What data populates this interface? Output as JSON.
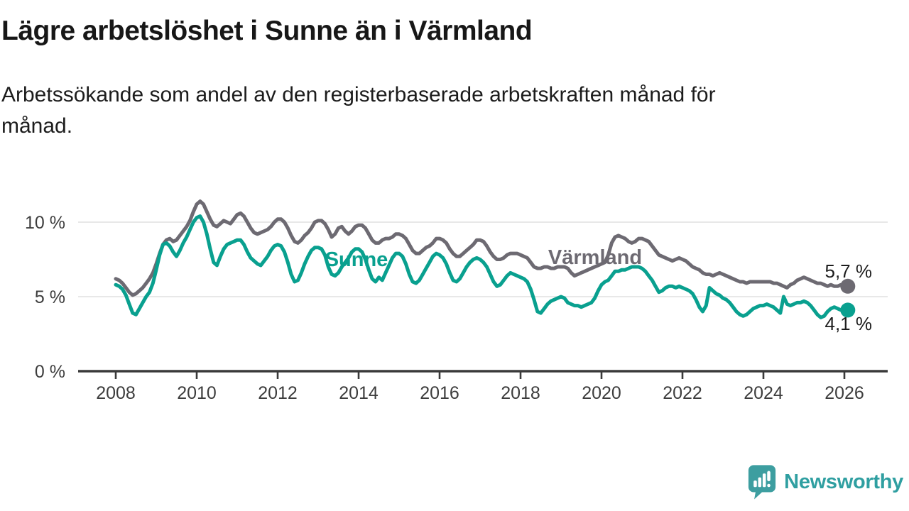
{
  "title": "Lägre arbetslöshet i Sunne än i Värmland",
  "subtitle": "Arbetssökande som andel av den registerbaserade arbetskraften månad för\nmånad.",
  "branding": {
    "logo_text": "Newsworthy",
    "logo_color": "#3d9ea0"
  },
  "chart_data": {
    "type": "line",
    "title": "Lägre arbetslöshet i Sunne än i Värmland",
    "frequency": "monthly",
    "x_range": {
      "start": "2008-01",
      "end": "2026-02"
    },
    "ylim": [
      0,
      12
    ],
    "grid": "horizontal",
    "x_axis": {
      "ticks": [
        {
          "label": "2008",
          "year": 2008
        },
        {
          "label": "2010",
          "year": 2010
        },
        {
          "label": "2012",
          "year": 2012
        },
        {
          "label": "2014",
          "year": 2014
        },
        {
          "label": "2016",
          "year": 2016
        },
        {
          "label": "2018",
          "year": 2018
        },
        {
          "label": "2020",
          "year": 2020
        },
        {
          "label": "2022",
          "year": 2022
        },
        {
          "label": "2024",
          "year": 2024
        },
        {
          "label": "2026",
          "year": 2026
        }
      ]
    },
    "y_axis": {
      "ticks": [
        {
          "label": "0 %",
          "value": 0
        },
        {
          "label": "5 %",
          "value": 5
        },
        {
          "label": "10 %",
          "value": 10
        }
      ]
    },
    "series": [
      {
        "id": "varmland",
        "name": "Värmland",
        "color": "#6d6a72",
        "end_label": "5,7 %",
        "values": [
          6.2,
          6.1,
          5.9,
          5.6,
          5.3,
          5.1,
          5.2,
          5.4,
          5.6,
          5.9,
          6.2,
          6.6,
          7.2,
          7.9,
          8.5,
          8.8,
          8.9,
          8.7,
          8.8,
          9.1,
          9.4,
          9.7,
          10.1,
          10.7,
          11.2,
          11.4,
          11.2,
          10.7,
          10.2,
          9.8,
          9.7,
          9.9,
          10.1,
          10.0,
          9.9,
          10.2,
          10.5,
          10.6,
          10.4,
          10.0,
          9.6,
          9.3,
          9.2,
          9.3,
          9.4,
          9.5,
          9.7,
          10.0,
          10.2,
          10.2,
          10.0,
          9.6,
          9.1,
          8.7,
          8.6,
          8.8,
          9.1,
          9.3,
          9.6,
          10.0,
          10.1,
          10.1,
          9.9,
          9.5,
          9.0,
          9.2,
          9.6,
          9.7,
          9.4,
          9.2,
          9.4,
          9.7,
          9.8,
          9.8,
          9.6,
          9.2,
          8.8,
          8.6,
          8.6,
          8.8,
          8.9,
          8.9,
          9.0,
          9.2,
          9.2,
          9.1,
          8.9,
          8.5,
          8.1,
          7.9,
          7.9,
          8.1,
          8.3,
          8.4,
          8.6,
          8.9,
          8.9,
          8.8,
          8.6,
          8.2,
          7.9,
          7.7,
          7.7,
          7.9,
          8.1,
          8.3,
          8.5,
          8.8,
          8.8,
          8.7,
          8.4,
          8.0,
          7.7,
          7.5,
          7.5,
          7.6,
          7.8,
          7.9,
          7.9,
          7.9,
          7.8,
          7.7,
          7.6,
          7.3,
          7.0,
          6.9,
          6.9,
          7.0,
          7.0,
          6.9,
          6.9,
          7.0,
          7.0,
          7.0,
          6.9,
          6.6,
          6.4,
          6.5,
          6.6,
          6.7,
          6.8,
          6.9,
          7.0,
          7.1,
          7.2,
          7.3,
          7.8,
          8.6,
          9.0,
          9.1,
          9.0,
          8.9,
          8.7,
          8.6,
          8.7,
          8.9,
          8.9,
          8.8,
          8.7,
          8.4,
          8.1,
          7.8,
          7.7,
          7.6,
          7.5,
          7.4,
          7.5,
          7.6,
          7.5,
          7.4,
          7.2,
          7.0,
          6.9,
          6.8,
          6.6,
          6.5,
          6.5,
          6.4,
          6.5,
          6.6,
          6.5,
          6.4,
          6.3,
          6.2,
          6.1,
          6.0,
          6.0,
          5.9,
          6.0,
          6.0,
          6.0,
          6.0,
          6.0,
          6.0,
          6.0,
          5.9,
          5.9,
          5.8,
          5.7,
          5.6,
          5.8,
          5.9,
          6.1,
          6.2,
          6.3,
          6.2,
          6.1,
          6.0,
          5.9,
          5.9,
          5.8,
          5.7,
          5.8,
          5.7,
          5.7,
          5.8,
          5.7,
          5.7
        ]
      },
      {
        "id": "sunne",
        "name": "Sunne",
        "color": "#09a08f",
        "end_label": "4,1 %",
        "values": [
          5.8,
          5.7,
          5.5,
          5.1,
          4.5,
          3.9,
          3.8,
          4.2,
          4.6,
          5.0,
          5.3,
          5.9,
          6.8,
          7.8,
          8.5,
          8.6,
          8.4,
          8.0,
          7.7,
          8.1,
          8.6,
          9.0,
          9.5,
          10.0,
          10.3,
          10.4,
          10.0,
          9.2,
          8.2,
          7.3,
          7.1,
          7.7,
          8.2,
          8.5,
          8.6,
          8.7,
          8.8,
          8.8,
          8.5,
          8.0,
          7.6,
          7.4,
          7.2,
          7.1,
          7.4,
          7.7,
          8.1,
          8.4,
          8.5,
          8.4,
          8.0,
          7.3,
          6.5,
          6.0,
          6.1,
          6.6,
          7.2,
          7.7,
          8.1,
          8.3,
          8.3,
          8.2,
          7.8,
          7.0,
          6.5,
          6.4,
          6.6,
          7.0,
          7.3,
          7.6,
          8.0,
          8.2,
          8.2,
          8.0,
          7.5,
          6.8,
          6.2,
          6.0,
          6.3,
          6.1,
          6.6,
          7.1,
          7.6,
          7.9,
          7.9,
          7.7,
          7.2,
          6.5,
          6.0,
          5.9,
          6.1,
          6.5,
          6.9,
          7.3,
          7.7,
          7.9,
          7.8,
          7.6,
          7.2,
          6.6,
          6.1,
          6.0,
          6.2,
          6.6,
          7.0,
          7.3,
          7.5,
          7.6,
          7.5,
          7.3,
          7.0,
          6.5,
          6.0,
          5.7,
          5.8,
          6.1,
          6.4,
          6.6,
          6.5,
          6.4,
          6.3,
          6.2,
          6.0,
          5.5,
          4.8,
          4.0,
          3.9,
          4.2,
          4.5,
          4.7,
          4.8,
          4.9,
          5.0,
          4.9,
          4.6,
          4.5,
          4.4,
          4.4,
          4.3,
          4.4,
          4.5,
          4.6,
          4.9,
          5.4,
          5.8,
          6.0,
          6.1,
          6.4,
          6.7,
          6.7,
          6.8,
          6.8,
          6.9,
          7.0,
          7.0,
          7.0,
          6.9,
          6.7,
          6.4,
          6.1,
          5.7,
          5.3,
          5.4,
          5.6,
          5.7,
          5.7,
          5.6,
          5.7,
          5.6,
          5.5,
          5.4,
          5.2,
          4.8,
          4.3,
          4.0,
          4.4,
          5.6,
          5.4,
          5.2,
          5.1,
          4.9,
          4.8,
          4.6,
          4.3,
          4.0,
          3.8,
          3.7,
          3.8,
          4.0,
          4.2,
          4.3,
          4.4,
          4.4,
          4.5,
          4.4,
          4.3,
          4.1,
          3.9,
          5.0,
          4.5,
          4.4,
          4.5,
          4.6,
          4.6,
          4.7,
          4.6,
          4.4,
          4.1,
          3.8,
          3.6,
          3.7,
          4.0,
          4.2,
          4.3,
          4.2,
          4.1,
          4.1,
          4.1
        ]
      }
    ]
  }
}
